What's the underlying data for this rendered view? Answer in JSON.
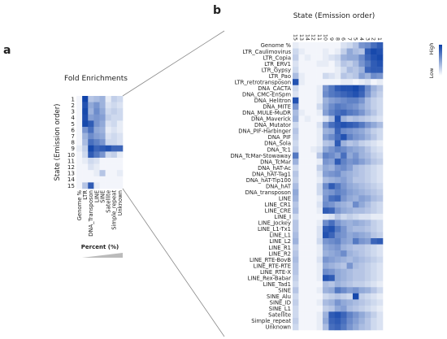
{
  "panel_a": {
    "letter": "a",
    "title": "Fold Enrichments",
    "ylabel": "State (Emission order)",
    "percent_label": "Percent (%)"
  },
  "panel_b": {
    "letter": "b",
    "title": "State (Emission order)"
  },
  "colorbar": {
    "high_label": "High",
    "low_label": "Low"
  },
  "colors": {
    "high": "#0b3fa8",
    "low": "#ffffff",
    "guide": "#888888"
  },
  "chart_data": [
    {
      "type": "heatmap",
      "name": "fold-enrichments",
      "title": "Fold Enrichments",
      "ylabel": "State (Emission order)",
      "rows": [
        "1",
        "2",
        "3",
        "4",
        "5",
        "6",
        "7",
        "8",
        "9",
        "10",
        "11",
        "12",
        "13",
        "14",
        "15"
      ],
      "columns": [
        "Genome %",
        "LTR",
        "DNA_Transposon",
        "LINE",
        "SINE",
        "Satellite",
        "Simple_repeat",
        "Unknown"
      ],
      "values": [
        [
          0.05,
          0.98,
          0.3,
          0.35,
          0.4,
          0.1,
          0.25,
          0.2
        ],
        [
          0.05,
          0.9,
          0.45,
          0.55,
          0.4,
          0.15,
          0.2,
          0.15
        ],
        [
          0.05,
          0.95,
          0.4,
          0.6,
          0.45,
          0.2,
          0.25,
          0.2
        ],
        [
          0.05,
          0.92,
          0.5,
          0.55,
          0.5,
          0.25,
          0.2,
          0.2
        ],
        [
          0.05,
          0.95,
          0.85,
          0.55,
          0.45,
          0.15,
          0.2,
          0.1
        ],
        [
          0.05,
          0.55,
          0.75,
          0.45,
          0.4,
          0.1,
          0.15,
          0.1
        ],
        [
          0.05,
          0.4,
          0.6,
          0.5,
          0.45,
          0.15,
          0.2,
          0.15
        ],
        [
          0.05,
          0.35,
          0.75,
          0.65,
          0.55,
          0.2,
          0.2,
          0.15
        ],
        [
          0.1,
          0.25,
          0.95,
          0.8,
          0.85,
          0.9,
          0.8,
          0.8
        ],
        [
          0.05,
          0.2,
          0.85,
          0.7,
          0.55,
          0.2,
          0.25,
          0.1
        ],
        [
          0.05,
          0.1,
          0.2,
          0.15,
          0.05,
          0.05,
          0.05,
          0.05
        ],
        [
          0.05,
          0.05,
          0.15,
          0.1,
          0.05,
          0.05,
          0.05,
          0.05
        ],
        [
          0.05,
          0.05,
          0.05,
          0.1,
          0.3,
          0.05,
          0.05,
          0.1
        ],
        [
          0.05,
          0.05,
          0.05,
          0.05,
          0.05,
          0.05,
          0.05,
          0.05
        ],
        [
          0.05,
          0.3,
          0.85,
          0.1,
          0.05,
          0.05,
          0.05,
          0.05
        ]
      ],
      "colorscale": [
        "#ffffff",
        "#0b3fa8"
      ]
    },
    {
      "type": "heatmap",
      "name": "state-emission-heatmap",
      "title": "State (Emission order)",
      "columns": [
        "15",
        "13",
        "14",
        "12",
        "11",
        "10",
        "9",
        "8",
        "6",
        "7",
        "5",
        "4",
        "3",
        "2",
        "1"
      ],
      "rows": [
        "Genome %",
        "LTR_Caulimovirus",
        "LTR_Copia",
        "LTR_ERV1",
        "LTR_Gypsy",
        "LTR_Pao",
        "LTR_retrotransposon",
        "DNA_CACTA",
        "DNA_CMC-EnSpm",
        "DNA_Helitron",
        "DNA_MITE",
        "DNA_MULE-MuDR",
        "DNA_Maverick",
        "DNA_Mutator",
        "DNA_PIF-Harbinger",
        "DNA_PIF",
        "DNA_Sola",
        "DNA_Tc1",
        "DNA_TcMar-Stowaway",
        "DNA_TcMar",
        "DNA_hAT-Ac",
        "DNA_hAT-Tag1",
        "DNA_hAT-Tip100",
        "DNA_hAT",
        "DNA_transposon",
        "LINE",
        "LINE_CR1",
        "LINE_CRE",
        "LINE_I",
        "LINE_Jockey",
        "LINE_L1-Tx1",
        "LINE_L1",
        "LINE_L2",
        "LINE_R1",
        "LINE_R2",
        "LINE_RTE-BovB",
        "LINE_RTE-RTE",
        "LINE_RTE-X",
        "LINE_Rex-Babar",
        "LINE_Tad1",
        "SINE",
        "SINE_Alu",
        "SINE_ID",
        "SINE_L1",
        "Satellite",
        "Simple_repeat",
        "Unknown"
      ],
      "values": [
        [
          0.1,
          0.05,
          0.05,
          0.05,
          0.05,
          0.05,
          0.05,
          0.05,
          0.15,
          0.2,
          0.3,
          0.55,
          0.6,
          0.75,
          0.85
        ],
        [
          0.2,
          0.1,
          0.05,
          0.05,
          0.05,
          0.1,
          0.05,
          0.1,
          0.25,
          0.45,
          0.35,
          0.3,
          0.85,
          0.95,
          0.9
        ],
        [
          0.25,
          0.05,
          0.1,
          0.05,
          0.05,
          0.1,
          0.15,
          0.2,
          0.4,
          0.45,
          0.45,
          0.6,
          0.8,
          0.9,
          0.95
        ],
        [
          0.15,
          0.05,
          0.05,
          0.05,
          0.1,
          0.1,
          0.05,
          0.15,
          0.3,
          0.25,
          0.35,
          0.55,
          0.7,
          0.85,
          0.9
        ],
        [
          0.2,
          0.05,
          0.05,
          0.05,
          0.05,
          0.05,
          0.05,
          0.1,
          0.2,
          0.35,
          0.3,
          0.4,
          0.8,
          0.85,
          0.85
        ],
        [
          0.35,
          0.1,
          0.05,
          0.05,
          0.05,
          0.2,
          0.15,
          0.1,
          0.3,
          0.25,
          0.3,
          0.5,
          0.4,
          0.6,
          0.55
        ],
        [
          0.9,
          0.1,
          0.05,
          0.05,
          0.05,
          0.05,
          0.05,
          0.05,
          0.1,
          0.1,
          0.05,
          0.1,
          0.15,
          0.05,
          0.1
        ],
        [
          0.2,
          0.05,
          0.05,
          0.05,
          0.1,
          0.55,
          0.7,
          0.85,
          0.9,
          0.9,
          0.95,
          0.85,
          0.6,
          0.4,
          0.3
        ],
        [
          0.15,
          0.05,
          0.05,
          0.05,
          0.1,
          0.6,
          0.7,
          0.75,
          0.8,
          0.85,
          0.9,
          0.8,
          0.55,
          0.35,
          0.25
        ],
        [
          0.9,
          0.05,
          0.05,
          0.05,
          0.1,
          0.4,
          0.5,
          0.55,
          0.6,
          0.65,
          0.65,
          0.55,
          0.35,
          0.25,
          0.2
        ],
        [
          0.55,
          0.05,
          0.05,
          0.05,
          0.2,
          0.45,
          0.6,
          0.7,
          0.65,
          0.6,
          0.55,
          0.45,
          0.35,
          0.25,
          0.2
        ],
        [
          0.35,
          0.1,
          0.05,
          0.05,
          0.1,
          0.5,
          0.65,
          0.75,
          0.8,
          0.7,
          0.65,
          0.55,
          0.4,
          0.3,
          0.2
        ],
        [
          0.4,
          0.05,
          0.1,
          0.05,
          0.05,
          0.15,
          0.35,
          0.9,
          0.4,
          0.3,
          0.35,
          0.3,
          0.25,
          0.2,
          0.15
        ],
        [
          0.2,
          0.05,
          0.05,
          0.05,
          0.15,
          0.55,
          0.75,
          0.85,
          0.9,
          0.85,
          0.8,
          0.7,
          0.55,
          0.45,
          0.35
        ],
        [
          0.3,
          0.05,
          0.05,
          0.05,
          0.1,
          0.4,
          0.45,
          0.8,
          0.6,
          0.55,
          0.5,
          0.45,
          0.35,
          0.25,
          0.2
        ],
        [
          0.25,
          0.05,
          0.05,
          0.05,
          0.1,
          0.5,
          0.6,
          0.75,
          0.9,
          0.65,
          0.55,
          0.5,
          0.4,
          0.3,
          0.2
        ],
        [
          0.2,
          0.05,
          0.05,
          0.05,
          0.1,
          0.3,
          0.35,
          0.85,
          0.4,
          0.3,
          0.35,
          0.25,
          0.2,
          0.15,
          0.1
        ],
        [
          0.25,
          0.05,
          0.05,
          0.1,
          0.15,
          0.45,
          0.55,
          0.65,
          0.6,
          0.5,
          0.45,
          0.4,
          0.3,
          0.2,
          0.15
        ],
        [
          0.7,
          0.05,
          0.05,
          0.05,
          0.3,
          0.65,
          0.6,
          0.5,
          0.75,
          0.45,
          0.55,
          0.4,
          0.35,
          0.25,
          0.2
        ],
        [
          0.4,
          0.05,
          0.05,
          0.05,
          0.1,
          0.55,
          0.5,
          0.85,
          0.65,
          0.55,
          0.6,
          0.5,
          0.4,
          0.3,
          0.25
        ],
        [
          0.2,
          0.05,
          0.05,
          0.05,
          0.25,
          0.45,
          0.4,
          0.55,
          0.6,
          0.5,
          0.35,
          0.3,
          0.25,
          0.2,
          0.15
        ],
        [
          0.3,
          0.05,
          0.05,
          0.05,
          0.15,
          0.5,
          0.55,
          0.6,
          0.45,
          0.4,
          0.35,
          0.3,
          0.25,
          0.2,
          0.15
        ],
        [
          0.25,
          0.05,
          0.05,
          0.05,
          0.1,
          0.35,
          0.4,
          0.45,
          0.5,
          0.4,
          0.3,
          0.3,
          0.25,
          0.2,
          0.15
        ],
        [
          0.35,
          0.05,
          0.05,
          0.05,
          0.2,
          0.6,
          0.85,
          0.7,
          0.55,
          0.45,
          0.4,
          0.35,
          0.3,
          0.25,
          0.2
        ],
        [
          0.45,
          0.05,
          0.05,
          0.05,
          0.2,
          0.5,
          0.55,
          0.65,
          0.6,
          0.5,
          0.45,
          0.4,
          0.35,
          0.3,
          0.25
        ],
        [
          0.4,
          0.05,
          0.05,
          0.05,
          0.1,
          0.55,
          0.75,
          0.8,
          0.55,
          0.45,
          0.4,
          0.5,
          0.45,
          0.35,
          0.3
        ],
        [
          0.3,
          0.05,
          0.05,
          0.05,
          0.15,
          0.6,
          0.55,
          0.45,
          0.4,
          0.35,
          0.6,
          0.45,
          0.35,
          0.25,
          0.2
        ],
        [
          0.35,
          0.05,
          0.05,
          0.05,
          0.1,
          0.85,
          0.8,
          0.55,
          0.45,
          0.4,
          0.35,
          0.35,
          0.3,
          0.25,
          0.2
        ],
        [
          0.2,
          0.05,
          0.05,
          0.05,
          0.05,
          0.1,
          0.15,
          0.3,
          0.2,
          0.25,
          0.2,
          0.15,
          0.15,
          0.1,
          0.1
        ],
        [
          0.3,
          0.05,
          0.05,
          0.05,
          0.1,
          0.6,
          0.75,
          0.55,
          0.45,
          0.4,
          0.45,
          0.4,
          0.35,
          0.25,
          0.2
        ],
        [
          0.3,
          0.05,
          0.05,
          0.05,
          0.15,
          0.85,
          0.9,
          0.7,
          0.55,
          0.4,
          0.35,
          0.35,
          0.3,
          0.25,
          0.2
        ],
        [
          0.35,
          0.05,
          0.05,
          0.05,
          0.15,
          0.9,
          0.8,
          0.6,
          0.55,
          0.45,
          0.5,
          0.45,
          0.4,
          0.3,
          0.25
        ],
        [
          0.4,
          0.05,
          0.05,
          0.05,
          0.2,
          0.55,
          0.6,
          0.65,
          0.5,
          0.45,
          0.7,
          0.55,
          0.5,
          0.8,
          0.85
        ],
        [
          0.25,
          0.05,
          0.05,
          0.05,
          0.1,
          0.45,
          0.5,
          0.55,
          0.4,
          0.35,
          0.3,
          0.3,
          0.25,
          0.2,
          0.15
        ],
        [
          0.3,
          0.05,
          0.05,
          0.05,
          0.1,
          0.4,
          0.45,
          0.5,
          0.6,
          0.4,
          0.35,
          0.3,
          0.25,
          0.2,
          0.15
        ],
        [
          0.35,
          0.05,
          0.05,
          0.05,
          0.15,
          0.55,
          0.5,
          0.45,
          0.4,
          0.35,
          0.4,
          0.35,
          0.3,
          0.25,
          0.2
        ],
        [
          0.3,
          0.05,
          0.05,
          0.05,
          0.1,
          0.45,
          0.4,
          0.35,
          0.3,
          0.55,
          0.35,
          0.3,
          0.25,
          0.2,
          0.15
        ],
        [
          0.3,
          0.05,
          0.05,
          0.05,
          0.1,
          0.6,
          0.55,
          0.45,
          0.4,
          0.35,
          0.3,
          0.3,
          0.25,
          0.2,
          0.15
        ],
        [
          0.25,
          0.05,
          0.05,
          0.05,
          0.1,
          0.9,
          0.85,
          0.45,
          0.4,
          0.35,
          0.3,
          0.3,
          0.25,
          0.2,
          0.15
        ],
        [
          0.2,
          0.05,
          0.05,
          0.05,
          0.05,
          0.35,
          0.3,
          0.4,
          0.35,
          0.3,
          0.25,
          0.25,
          0.2,
          0.15,
          0.1
        ],
        [
          0.3,
          0.05,
          0.05,
          0.05,
          0.1,
          0.4,
          0.45,
          0.7,
          0.6,
          0.5,
          0.55,
          0.45,
          0.4,
          0.3,
          0.2
        ],
        [
          0.2,
          0.05,
          0.05,
          0.05,
          0.05,
          0.2,
          0.25,
          0.3,
          0.25,
          0.2,
          0.95,
          0.25,
          0.2,
          0.15,
          0.1
        ],
        [
          0.25,
          0.05,
          0.05,
          0.05,
          0.1,
          0.35,
          0.4,
          0.55,
          0.45,
          0.4,
          0.35,
          0.3,
          0.25,
          0.2,
          0.15
        ],
        [
          0.2,
          0.05,
          0.05,
          0.05,
          0.05,
          0.25,
          0.3,
          0.45,
          0.5,
          0.35,
          0.3,
          0.25,
          0.2,
          0.15,
          0.1
        ],
        [
          0.2,
          0.05,
          0.05,
          0.05,
          0.1,
          0.4,
          0.85,
          0.9,
          0.8,
          0.65,
          0.55,
          0.45,
          0.35,
          0.25,
          0.15
        ],
        [
          0.25,
          0.05,
          0.05,
          0.05,
          0.1,
          0.45,
          0.8,
          0.85,
          0.75,
          0.6,
          0.5,
          0.4,
          0.3,
          0.2,
          0.15
        ],
        [
          0.2,
          0.05,
          0.05,
          0.05,
          0.1,
          0.35,
          0.75,
          0.8,
          0.7,
          0.55,
          0.45,
          0.35,
          0.3,
          0.2,
          0.15
        ]
      ],
      "colorscale": [
        "#ffffff",
        "#0b3fa8"
      ]
    }
  ]
}
